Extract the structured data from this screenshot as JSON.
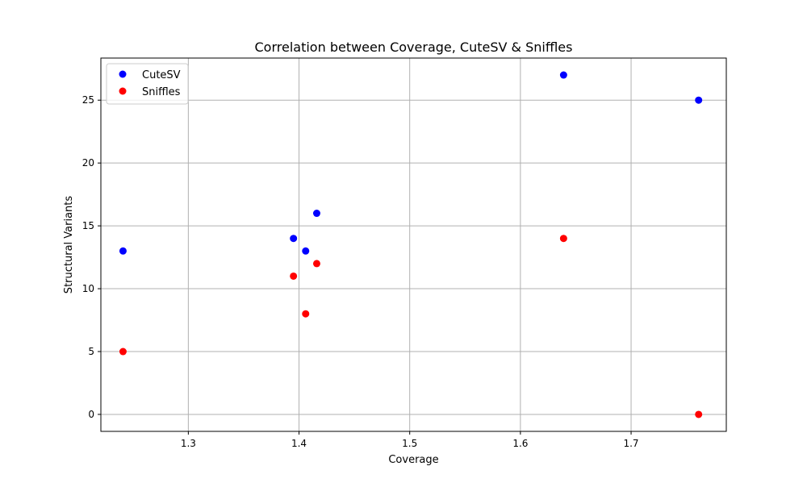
{
  "chart_data": {
    "type": "scatter",
    "title": "Correlation between Coverage, CuteSV & Sniffles",
    "xlabel": "Coverage",
    "ylabel": "Structural Variants",
    "xlim": [
      1.221,
      1.786
    ],
    "ylim": [
      -1.35,
      28.35
    ],
    "xticks": [
      1.3,
      1.4,
      1.5,
      1.6,
      1.7
    ],
    "xtick_labels": [
      "1.3",
      "1.4",
      "1.5",
      "1.6",
      "1.7"
    ],
    "yticks": [
      0,
      5,
      10,
      15,
      20,
      25
    ],
    "ytick_labels": [
      "0",
      "5",
      "10",
      "15",
      "20",
      "25"
    ],
    "grid": true,
    "legend_position": "top-left",
    "series": [
      {
        "name": "CuteSV",
        "color": "#0000ff",
        "points": [
          {
            "x": 1.241,
            "y": 13
          },
          {
            "x": 1.395,
            "y": 14
          },
          {
            "x": 1.406,
            "y": 13
          },
          {
            "x": 1.416,
            "y": 16
          },
          {
            "x": 1.639,
            "y": 27
          },
          {
            "x": 1.761,
            "y": 25
          }
        ]
      },
      {
        "name": "Sniffles",
        "color": "#ff0000",
        "points": [
          {
            "x": 1.241,
            "y": 5
          },
          {
            "x": 1.395,
            "y": 11
          },
          {
            "x": 1.406,
            "y": 8
          },
          {
            "x": 1.416,
            "y": 12
          },
          {
            "x": 1.639,
            "y": 14
          },
          {
            "x": 1.761,
            "y": 0
          }
        ]
      }
    ]
  }
}
